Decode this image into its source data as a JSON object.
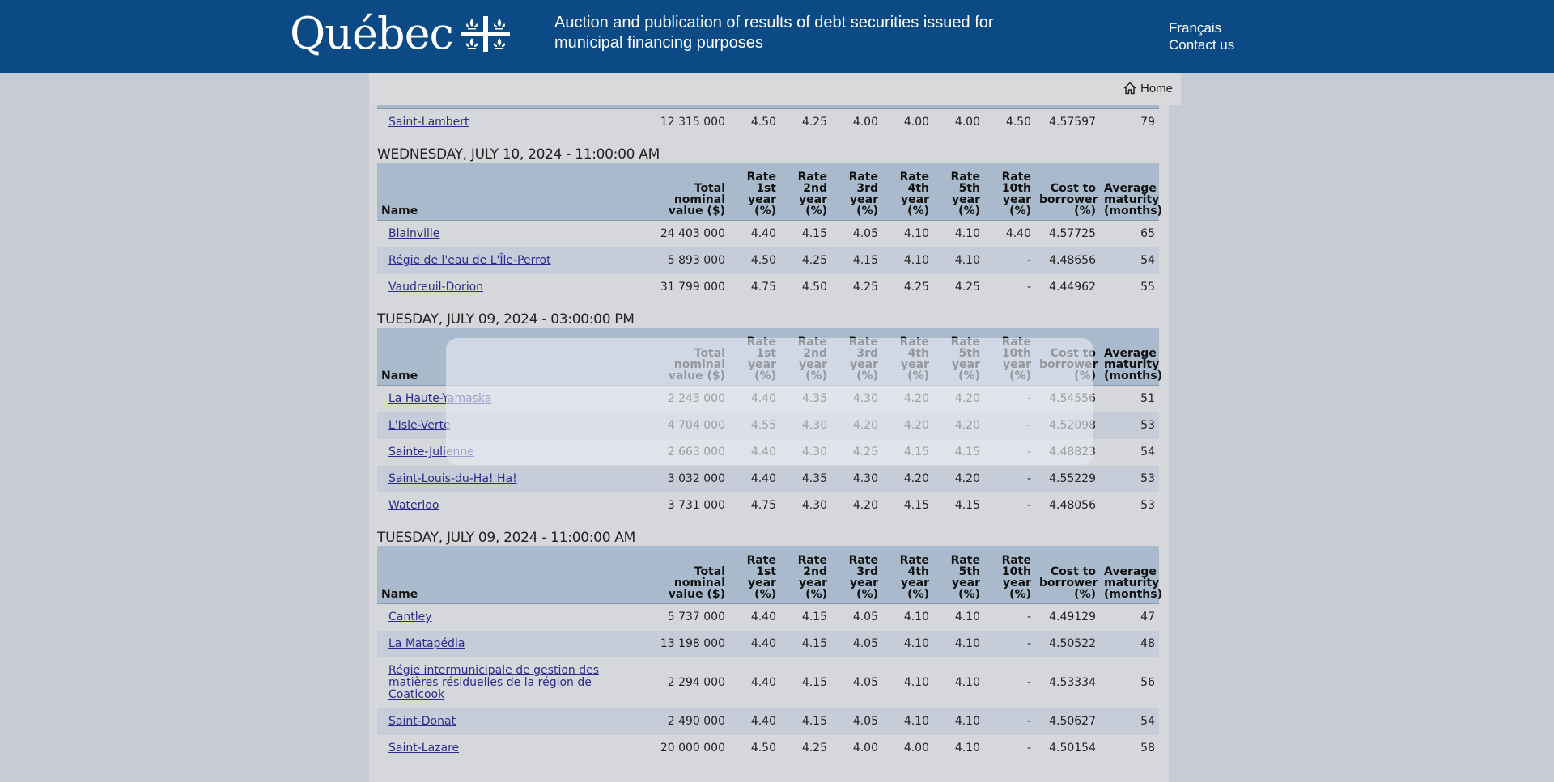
{
  "header": {
    "logo_text": "Québec",
    "title": "Auction and publication of results of debt securities issued for municipal financing purposes",
    "links": [
      "Français",
      "Contact us"
    ]
  },
  "subnav": {
    "home_label": "Home"
  },
  "columns": [
    [
      "Name"
    ],
    [
      "Total",
      "nominal",
      "value ($)"
    ],
    [
      "Rate",
      "1st",
      "year",
      "(%)"
    ],
    [
      "Rate",
      "2nd",
      "year",
      "(%)"
    ],
    [
      "Rate",
      "3rd",
      "year",
      "(%)"
    ],
    [
      "Rate",
      "4th",
      "year",
      "(%)"
    ],
    [
      "Rate",
      "5th",
      "year",
      "(%)"
    ],
    [
      "Rate",
      "10th",
      "year",
      "(%)"
    ],
    [
      "Cost to",
      "borrower",
      "(%)"
    ],
    [
      "Average",
      "maturity",
      "(months)"
    ]
  ],
  "partial_columns": [
    "Name",
    "value ($)",
    "(%)",
    "(%)",
    "(%)",
    "(%)",
    "(%)",
    "(%)",
    "(%)",
    "(months)"
  ],
  "partial_rows": [
    [
      "Saint-Lambert",
      "12 315 000",
      "4.50",
      "4.25",
      "4.00",
      "4.00",
      "4.00",
      "4.50",
      "4.57597",
      "79"
    ]
  ],
  "sections": [
    {
      "date": "WEDNESDAY, JULY 10, 2024 - 11:00:00 AM",
      "rows": [
        [
          "Blainville",
          "24 403 000",
          "4.40",
          "4.15",
          "4.05",
          "4.10",
          "4.10",
          "4.40",
          "4.57725",
          "65"
        ],
        [
          "Régie de l'eau de L'Île-Perrot",
          "5 893 000",
          "4.50",
          "4.25",
          "4.15",
          "4.10",
          "4.10",
          "-",
          "4.48656",
          "54"
        ],
        [
          "Vaudreuil-Dorion",
          "31 799 000",
          "4.75",
          "4.50",
          "4.25",
          "4.25",
          "4.25",
          "-",
          "4.44962",
          "55"
        ]
      ]
    },
    {
      "date": "TUESDAY, JULY 09, 2024 - 03:00:00 PM",
      "rows": [
        [
          "La Haute-Yamaska",
          "2 243 000",
          "4.40",
          "4.35",
          "4.30",
          "4.20",
          "4.20",
          "-",
          "4.54556",
          "51"
        ],
        [
          "L'Isle-Verte",
          "4 704 000",
          "4.55",
          "4.30",
          "4.20",
          "4.20",
          "4.20",
          "-",
          "4.52098",
          "53"
        ],
        [
          "Sainte-Julienne",
          "2 663 000",
          "4.40",
          "4.30",
          "4.25",
          "4.15",
          "4.15",
          "-",
          "4.48823",
          "54"
        ],
        [
          "Saint-Louis-du-Ha! Ha!",
          "3 032 000",
          "4.40",
          "4.35",
          "4.30",
          "4.20",
          "4.20",
          "-",
          "4.55229",
          "53"
        ],
        [
          "Waterloo",
          "3 731 000",
          "4.75",
          "4.30",
          "4.20",
          "4.15",
          "4.15",
          "-",
          "4.48056",
          "53"
        ]
      ]
    },
    {
      "date": "TUESDAY, JULY 09, 2024 - 11:00:00 AM",
      "rows": [
        [
          "Cantley",
          "5 737 000",
          "4.40",
          "4.15",
          "4.05",
          "4.10",
          "4.10",
          "-",
          "4.49129",
          "47"
        ],
        [
          "La Matapédia",
          "13 198 000",
          "4.40",
          "4.15",
          "4.05",
          "4.10",
          "4.10",
          "-",
          "4.50522",
          "48"
        ],
        [
          "Régie intermunicipale de gestion des matières résiduelles de la région de Coaticook",
          "2 294 000",
          "4.40",
          "4.15",
          "4.05",
          "4.10",
          "4.10",
          "-",
          "4.53334",
          "56"
        ],
        [
          "Saint-Donat",
          "2 490 000",
          "4.40",
          "4.15",
          "4.05",
          "4.10",
          "4.10",
          "-",
          "4.50627",
          "54"
        ],
        [
          "Saint-Lazare",
          "20 000 000",
          "4.50",
          "4.25",
          "4.00",
          "4.00",
          "4.10",
          "-",
          "4.50154",
          "58"
        ]
      ]
    }
  ]
}
